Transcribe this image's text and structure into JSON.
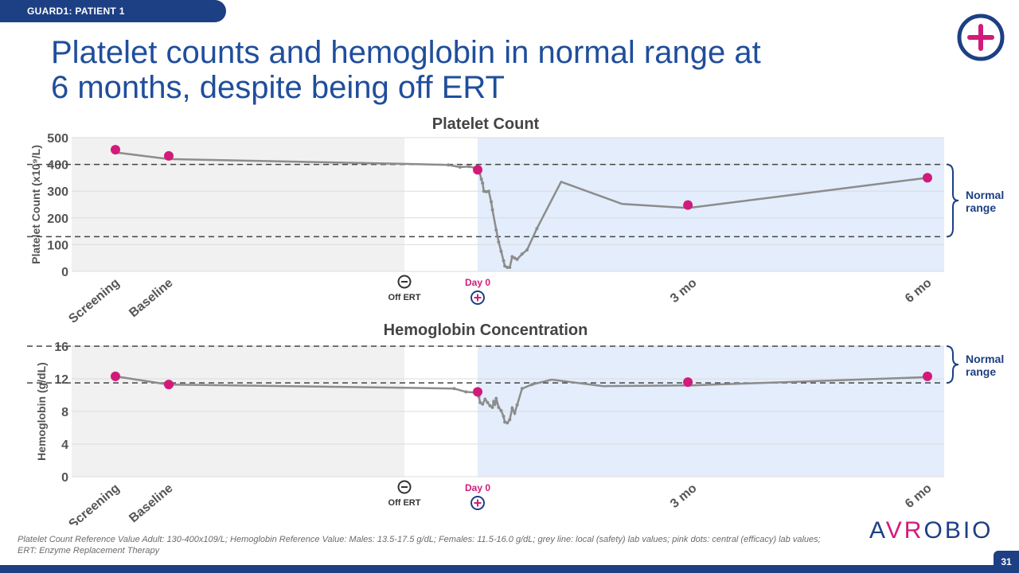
{
  "header": {
    "tag": "GUARD1: PATIENT 1",
    "title_line1": "Platelet counts and hemoglobin in normal range at",
    "title_line2": "6 months, despite being off ERT"
  },
  "annotations": {
    "normal_range_top_1": "Normal",
    "normal_range_top_2": "range",
    "normal_range_bottom_1": "Normal",
    "normal_range_bottom_2": "range"
  },
  "footnote": "Platelet Count Reference Value Adult: 130-400x109/L; Hemoglobin Reference Value: Males: 13.5-17.5 g/dL; Females: 11.5-16.0 g/dL; grey line: local (safety) lab values; pink dots: central (efficacy) lab values; ERT: Enzyme Replacement Therapy",
  "logo": {
    "part1": "A",
    "part2": "VR",
    "part3": "OBIO"
  },
  "page_number": "31",
  "colors": {
    "title": "#1f4e9c",
    "navy": "#1d3f84",
    "pink": "#d21a7a",
    "grey_line": "#8c8c8c",
    "shade_grey": "#f1f1f1",
    "shade_blue": "#e3edfb"
  },
  "chart_data": [
    {
      "type": "line",
      "title": "Platelet Count",
      "ylabel": "Platelet Count (x10⁹/L)",
      "ylim": [
        0,
        500
      ],
      "yticks": [
        0,
        100,
        200,
        300,
        400,
        500
      ],
      "xlim": [
        -200,
        190
      ],
      "timepoints": [
        {
          "label": "Screening",
          "x": -190
        },
        {
          "label": "Baseline",
          "x": -172
        },
        {
          "label": "3 mo",
          "x": 90
        },
        {
          "label": "6 mo",
          "x": 182
        }
      ],
      "events": {
        "off_ert_label": "Off ERT",
        "off_ert_x": -25,
        "day0_label": "Day 0",
        "day0_x": 0
      },
      "reference_lines": [
        400,
        130
      ],
      "normal_range": [
        130,
        400
      ],
      "series": [
        {
          "role": "local",
          "points": [
            [
              -190,
              445
            ],
            [
              -172,
              420
            ],
            [
              -25,
              402
            ],
            [
              -10,
              398
            ],
            [
              -6,
              390
            ],
            [
              -3,
              392
            ],
            [
              0,
              385
            ],
            [
              0.8,
              370
            ],
            [
              1.5,
              345
            ],
            [
              2,
              330
            ],
            [
              2.5,
              300
            ],
            [
              3.5,
              298
            ],
            [
              4.5,
              300
            ],
            [
              5.5,
              260
            ],
            [
              6,
              230
            ],
            [
              7.5,
              155
            ],
            [
              8.5,
              110
            ],
            [
              9.5,
              75
            ],
            [
              10.5,
              40
            ],
            [
              11,
              20
            ],
            [
              12,
              15
            ],
            [
              13,
              15
            ],
            [
              14,
              55
            ],
            [
              15,
              50
            ],
            [
              16,
              45
            ],
            [
              18,
              65
            ],
            [
              20,
              80
            ],
            [
              24,
              160
            ],
            [
              34,
              335
            ],
            [
              60,
              252
            ],
            [
              88,
              237
            ],
            [
              182,
              350
            ]
          ]
        },
        {
          "role": "central",
          "points": [
            [
              -190,
              455
            ],
            [
              -172,
              432
            ],
            [
              0,
              380
            ],
            [
              88,
              248
            ],
            [
              182,
              350
            ]
          ]
        }
      ]
    },
    {
      "type": "line",
      "title": "Hemoglobin Concentration",
      "ylabel": "Hemoglobin (g/dL)",
      "ylim": [
        0,
        16
      ],
      "yticks": [
        0,
        4,
        8,
        12,
        16
      ],
      "xlim": [
        -200,
        190
      ],
      "timepoints": [
        {
          "label": "Screening",
          "x": -190
        },
        {
          "label": "Baseline",
          "x": -172
        },
        {
          "label": "3 mo",
          "x": 90
        },
        {
          "label": "6 mo",
          "x": 182
        }
      ],
      "events": {
        "off_ert_label": "Off ERT",
        "off_ert_x": -25,
        "day0_label": "Day 0",
        "day0_x": 0
      },
      "reference_lines": [
        16,
        11.5
      ],
      "normal_range": [
        11.5,
        16
      ],
      "series": [
        {
          "role": "local",
          "points": [
            [
              -190,
              12.3
            ],
            [
              -172,
              11.3
            ],
            [
              -25,
              10.9
            ],
            [
              -8,
              10.8
            ],
            [
              -4,
              10.4
            ],
            [
              0,
              10.3
            ],
            [
              0.5,
              9.8
            ],
            [
              1,
              9.1
            ],
            [
              2,
              8.9
            ],
            [
              3,
              9.5
            ],
            [
              4,
              9.1
            ],
            [
              5,
              8.7
            ],
            [
              6,
              8.5
            ],
            [
              6.5,
              9.2
            ],
            [
              7,
              8.9
            ],
            [
              7.5,
              9.6
            ],
            [
              8.5,
              8.5
            ],
            [
              9.5,
              8.1
            ],
            [
              10.5,
              7.4
            ],
            [
              11,
              6.7
            ],
            [
              12,
              6.6
            ],
            [
              13,
              7.0
            ],
            [
              14,
              8.4
            ],
            [
              15,
              7.8
            ],
            [
              16,
              8.8
            ],
            [
              18,
              10.8
            ],
            [
              22,
              11.3
            ],
            [
              30,
              11.9
            ],
            [
              52,
              11.1
            ],
            [
              90,
              11.2
            ],
            [
              182,
              12.2
            ]
          ]
        },
        {
          "role": "central",
          "points": [
            [
              -190,
              12.3
            ],
            [
              -172,
              11.3
            ],
            [
              0,
              10.4
            ],
            [
              88,
              11.6
            ],
            [
              182,
              12.3
            ]
          ]
        }
      ]
    }
  ]
}
